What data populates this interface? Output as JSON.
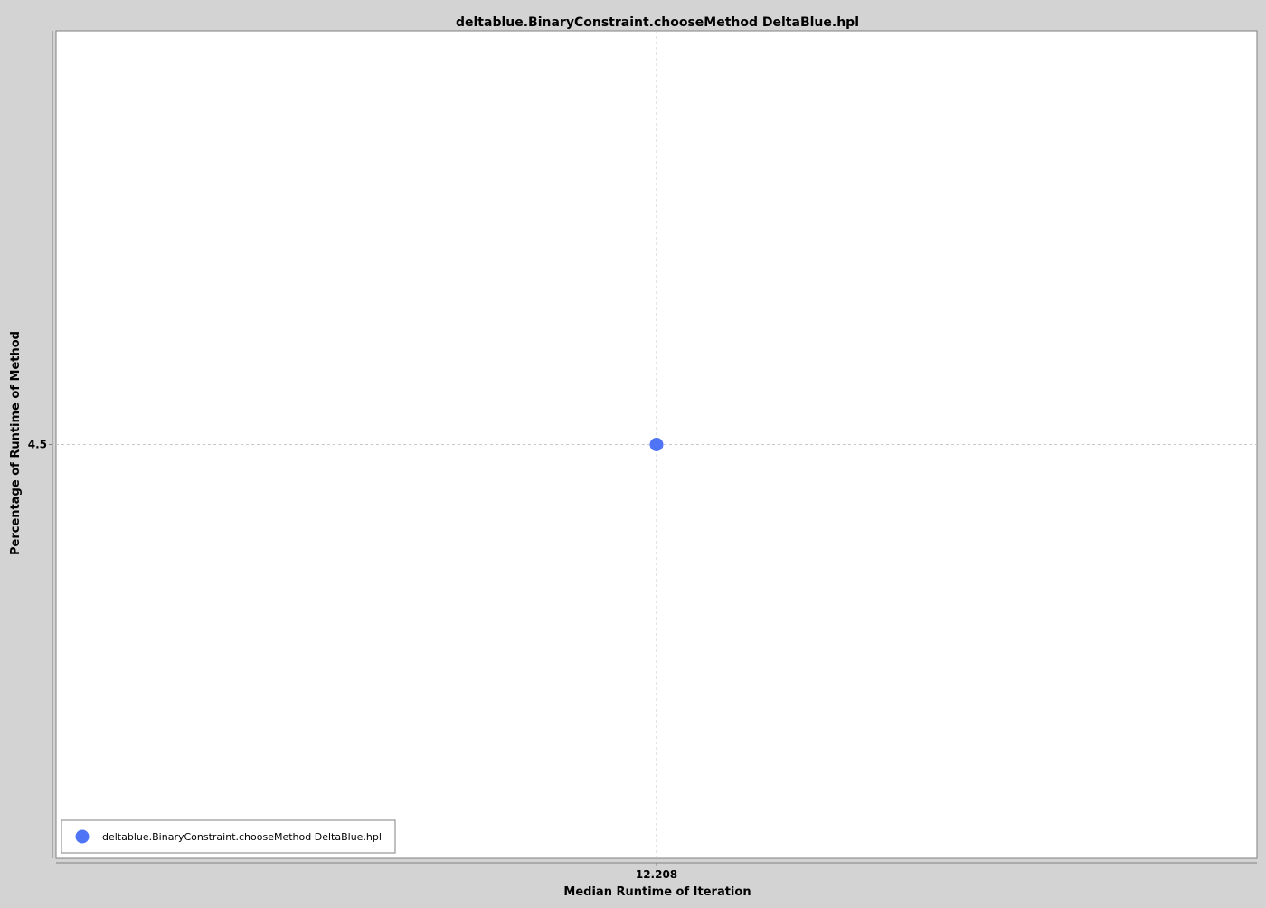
{
  "colors": {
    "background": "#d3d3d3",
    "plot_background": "#ffffff",
    "gridline": "#c8c8c8",
    "axis": "#808080",
    "series_color": "#4f74f5"
  },
  "chart_data": {
    "type": "scatter",
    "title": "deltablue.BinaryConstraint.chooseMethod DeltaBlue.hpl",
    "xlabel": "Median Runtime of Iteration",
    "ylabel": "Percentage of Runtime of Method",
    "x_ticks": [
      12.208
    ],
    "x_tick_labels": [
      "12.208"
    ],
    "y_ticks": [
      4.5
    ],
    "y_tick_labels": [
      "4.5"
    ],
    "xlim": [
      11.208,
      13.208
    ],
    "ylim": [
      3.5,
      5.5
    ],
    "grid": true,
    "legend": {
      "placement": "bottom-left",
      "entries": [
        "deltablue.BinaryConstraint.chooseMethod DeltaBlue.hpl"
      ]
    },
    "series": [
      {
        "name": "deltablue.BinaryConstraint.chooseMethod DeltaBlue.hpl",
        "points": [
          {
            "x": 12.208,
            "y": 4.5
          }
        ]
      }
    ]
  }
}
